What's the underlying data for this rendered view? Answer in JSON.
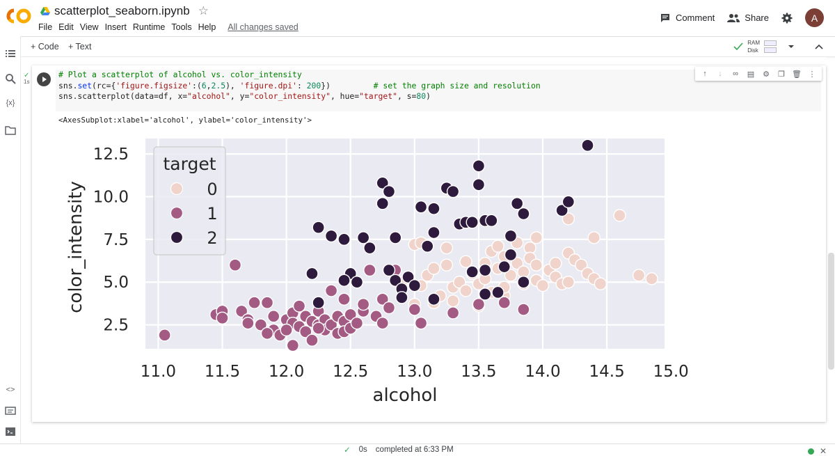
{
  "app": {
    "logo_text": "CO",
    "notebook_title": "scatterplot_seaborn.ipynb",
    "menu": [
      "File",
      "Edit",
      "View",
      "Insert",
      "Runtime",
      "Tools",
      "Help"
    ],
    "save_status": "All changes saved",
    "comment_label": "Comment",
    "share_label": "Share",
    "avatar_initial": "A"
  },
  "toolbar": {
    "add_code": "+ Code",
    "add_text": "+ Text",
    "ram_label": "RAM",
    "disk_label": "Disk"
  },
  "cell": {
    "exec_time": "1s",
    "code_line1_comment": "# Plot a scatterplot of alcohol vs. color_intensity",
    "code_line2_a": "sns.",
    "code_line2_kw": "set",
    "code_line2_b": "(rc={",
    "code_line2_s1": "'figure.figsize'",
    "code_line2_c": ":(",
    "code_line2_n1": "6",
    "code_line2_d": ",",
    "code_line2_n2": "2.5",
    "code_line2_e": "), ",
    "code_line2_s2": "'figure.dpi'",
    "code_line2_f": ": ",
    "code_line2_n3": "200",
    "code_line2_g": "})         ",
    "code_line2_comment": "# set the graph size and resolution",
    "code_line3_a": "sns.scatterplot(data=df, x=",
    "code_line3_s1": "\"alcohol\"",
    "code_line3_b": ", y=",
    "code_line3_s2": "\"color_intensity\"",
    "code_line3_c": ", hue=",
    "code_line3_s3": "\"target\"",
    "code_line3_d": ", s=",
    "code_line3_n": "80",
    "code_line3_e": ")",
    "output_text": "<AxesSubplot:xlabel='alcohol', ylabel='color_intensity'>"
  },
  "status": {
    "elapsed": "0s",
    "completed": "completed at 6:33 PM"
  },
  "colors": {
    "plot_bg": "#eaeaf2",
    "target_0": "#f0d3cb",
    "target_1": "#a35b84",
    "target_2": "#2d1a3c"
  },
  "chart_data": {
    "type": "scatter",
    "xlabel": "alcohol",
    "ylabel": "color_intensity",
    "xlim": [
      10.9,
      14.95
    ],
    "ylim": [
      1.1,
      13.4
    ],
    "xticks": [
      "11.0",
      "11.5",
      "12.0",
      "12.5",
      "13.0",
      "13.5",
      "14.0",
      "14.5",
      "15.0"
    ],
    "yticks": [
      "2.5",
      "5.0",
      "7.5",
      "10.0",
      "12.5"
    ],
    "grid": true,
    "legend_position": "top-left",
    "legend_title": "target",
    "series": [
      {
        "name": "0",
        "points": [
          [
            12.85,
            5.7
          ],
          [
            12.9,
            5.0
          ],
          [
            13.0,
            7.2
          ],
          [
            13.05,
            7.3
          ],
          [
            13.05,
            4.8
          ],
          [
            13.1,
            5.4
          ],
          [
            13.15,
            5.8
          ],
          [
            13.2,
            4.2
          ],
          [
            13.25,
            6.0
          ],
          [
            13.3,
            4.7
          ],
          [
            13.3,
            3.9
          ],
          [
            13.35,
            5.0
          ],
          [
            13.4,
            4.5
          ],
          [
            13.45,
            5.5
          ],
          [
            13.5,
            4.9
          ],
          [
            13.5,
            3.6
          ],
          [
            13.55,
            6.1
          ],
          [
            13.55,
            5.2
          ],
          [
            13.6,
            6.8
          ],
          [
            13.6,
            4.4
          ],
          [
            13.65,
            7.1
          ],
          [
            13.65,
            5.8
          ],
          [
            13.7,
            6.5
          ],
          [
            13.7,
            4.2
          ],
          [
            13.75,
            5.4
          ],
          [
            13.8,
            7.3
          ],
          [
            13.8,
            6.1
          ],
          [
            13.85,
            5.6
          ],
          [
            13.85,
            4.9
          ],
          [
            13.9,
            7.0
          ],
          [
            13.9,
            6.4
          ],
          [
            13.95,
            6.0
          ],
          [
            13.95,
            5.1
          ],
          [
            14.0,
            4.8
          ],
          [
            14.05,
            5.7
          ],
          [
            14.1,
            6.1
          ],
          [
            14.1,
            5.3
          ],
          [
            14.15,
            4.9
          ],
          [
            14.2,
            6.7
          ],
          [
            14.2,
            5.0
          ],
          [
            14.25,
            6.3
          ],
          [
            14.3,
            6.0
          ],
          [
            14.35,
            5.5
          ],
          [
            14.4,
            7.6
          ],
          [
            14.4,
            5.2
          ],
          [
            14.45,
            4.9
          ],
          [
            14.75,
            5.4
          ],
          [
            14.85,
            5.2
          ],
          [
            13.15,
            3.8
          ],
          [
            13.4,
            6.2
          ],
          [
            13.25,
            7.0
          ],
          [
            13.0,
            3.7
          ],
          [
            14.6,
            8.9
          ],
          [
            14.2,
            8.7
          ],
          [
            13.95,
            7.6
          ],
          [
            13.7,
            4.7
          ]
        ],
        "color_key": "target_0"
      },
      {
        "name": "1",
        "points": [
          [
            11.05,
            1.9
          ],
          [
            11.45,
            3.1
          ],
          [
            11.5,
            3.3
          ],
          [
            11.5,
            2.9
          ],
          [
            11.6,
            6.0
          ],
          [
            11.65,
            3.3
          ],
          [
            11.7,
            2.8
          ],
          [
            11.7,
            2.6
          ],
          [
            11.75,
            3.8
          ],
          [
            11.8,
            2.5
          ],
          [
            11.85,
            3.8
          ],
          [
            11.9,
            3.0
          ],
          [
            11.9,
            2.2
          ],
          [
            11.95,
            1.9
          ],
          [
            12.0,
            2.8
          ],
          [
            12.05,
            3.2
          ],
          [
            12.05,
            2.6
          ],
          [
            12.1,
            3.6
          ],
          [
            12.1,
            2.4
          ],
          [
            12.15,
            3.0
          ],
          [
            12.15,
            2.1
          ],
          [
            12.2,
            2.7
          ],
          [
            12.2,
            1.6
          ],
          [
            12.25,
            3.3
          ],
          [
            12.25,
            2.5
          ],
          [
            12.3,
            2.8
          ],
          [
            12.3,
            2.2
          ],
          [
            12.35,
            4.5
          ],
          [
            12.35,
            2.5
          ],
          [
            12.4,
            3.0
          ],
          [
            12.4,
            2.0
          ],
          [
            12.45,
            2.7
          ],
          [
            12.45,
            2.1
          ],
          [
            12.5,
            3.1
          ],
          [
            12.5,
            2.3
          ],
          [
            12.55,
            2.6
          ],
          [
            12.6,
            3.3
          ],
          [
            12.65,
            5.7
          ],
          [
            12.7,
            3.0
          ],
          [
            12.75,
            2.6
          ],
          [
            12.75,
            4.0
          ],
          [
            12.8,
            3.5
          ],
          [
            12.85,
            5.7
          ],
          [
            13.0,
            3.4
          ],
          [
            13.05,
            2.6
          ],
          [
            13.3,
            3.2
          ],
          [
            13.5,
            3.7
          ],
          [
            13.7,
            3.8
          ],
          [
            13.85,
            3.4
          ],
          [
            12.05,
            1.3
          ],
          [
            12.25,
            2.3
          ],
          [
            11.85,
            2.0
          ],
          [
            12.45,
            4.0
          ],
          [
            12.6,
            3.7
          ],
          [
            12.0,
            2.2
          ]
        ],
        "color_key": "target_1"
      },
      {
        "name": "2",
        "points": [
          [
            12.2,
            5.5
          ],
          [
            12.25,
            8.2
          ],
          [
            12.25,
            3.8
          ],
          [
            12.35,
            7.7
          ],
          [
            12.45,
            7.5
          ],
          [
            12.5,
            5.5
          ],
          [
            12.55,
            5.0
          ],
          [
            12.6,
            7.6
          ],
          [
            12.65,
            7.0
          ],
          [
            12.75,
            10.8
          ],
          [
            12.75,
            9.6
          ],
          [
            12.8,
            10.3
          ],
          [
            12.8,
            5.7
          ],
          [
            12.85,
            7.6
          ],
          [
            12.85,
            5.1
          ],
          [
            12.9,
            4.6
          ],
          [
            12.9,
            4.1
          ],
          [
            12.95,
            5.3
          ],
          [
            13.0,
            4.8
          ],
          [
            13.05,
            9.4
          ],
          [
            13.1,
            7.1
          ],
          [
            13.15,
            9.3
          ],
          [
            13.15,
            7.9
          ],
          [
            13.15,
            4.0
          ],
          [
            13.25,
            10.5
          ],
          [
            13.3,
            10.3
          ],
          [
            13.35,
            8.4
          ],
          [
            13.4,
            8.5
          ],
          [
            13.45,
            5.6
          ],
          [
            13.45,
            8.5
          ],
          [
            13.5,
            10.7
          ],
          [
            13.5,
            11.8
          ],
          [
            13.55,
            8.6
          ],
          [
            13.55,
            4.3
          ],
          [
            13.6,
            8.6
          ],
          [
            13.65,
            4.4
          ],
          [
            13.75,
            7.7
          ],
          [
            13.75,
            6.6
          ],
          [
            13.8,
            9.6
          ],
          [
            13.85,
            9.0
          ],
          [
            13.85,
            5.0
          ],
          [
            14.15,
            9.2
          ],
          [
            14.2,
            9.7
          ],
          [
            14.35,
            13.0
          ],
          [
            13.55,
            5.7
          ],
          [
            12.45,
            5.1
          ],
          [
            13.7,
            5.9
          ]
        ],
        "color_key": "target_2"
      }
    ]
  }
}
